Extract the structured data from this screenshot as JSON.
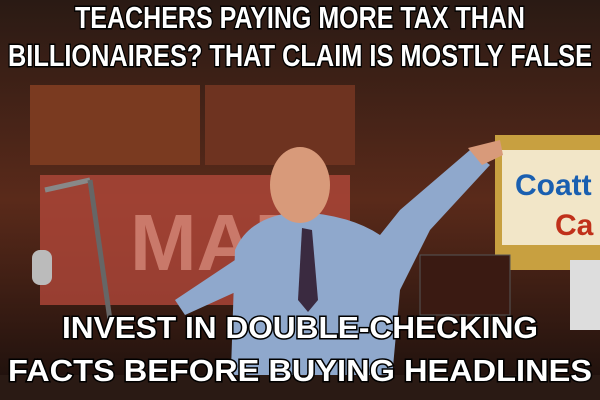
{
  "meme": {
    "top_text": [
      "TEACHERS PAYING MORE TAX THAN",
      "BILLIONAIRES? THAT CLAIM IS MOSTLY FALSE"
    ],
    "bottom_text": [
      "INVEST IN DOUBLE-CHECKING",
      "FACTS BEFORE BUYING HEADLINES"
    ],
    "background_text": [
      "MAD",
      "Coatt",
      "Ca"
    ]
  }
}
